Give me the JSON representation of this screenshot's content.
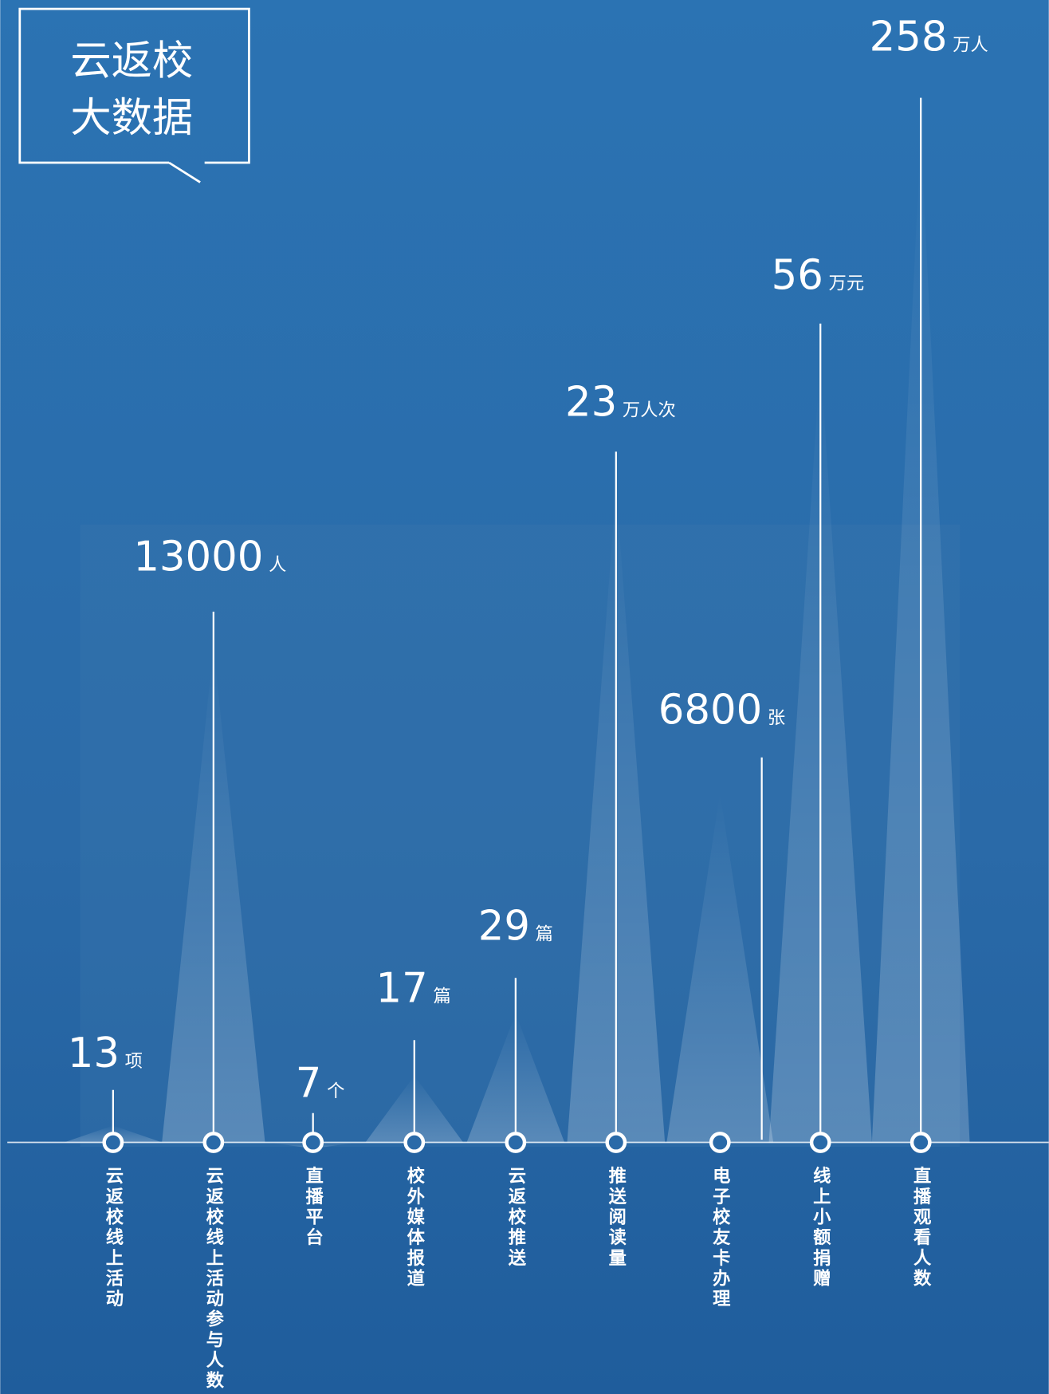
{
  "title": {
    "line1": "云返校",
    "line2": "大数据"
  },
  "items": [
    {
      "label": "云返校线上活动",
      "value": 13,
      "unit": "项"
    },
    {
      "label": "云返校线上活动参与人数",
      "value": 13000,
      "unit": "人"
    },
    {
      "label": "直播平台",
      "value": 7,
      "unit": "个"
    },
    {
      "label": "校外媒体报道",
      "value": 17,
      "unit": "篇"
    },
    {
      "label": "云返校推送",
      "value": 29,
      "unit": "篇"
    },
    {
      "label": "推送阅读量",
      "value": 23,
      "unit": "万人次"
    },
    {
      "label": "电子校友卡办理",
      "value": 6800,
      "unit": "张"
    },
    {
      "label": "线上小额捐赠",
      "value": 56,
      "unit": "万元"
    },
    {
      "label": "直播观看人数",
      "value": 258,
      "unit": "万人"
    }
  ]
}
